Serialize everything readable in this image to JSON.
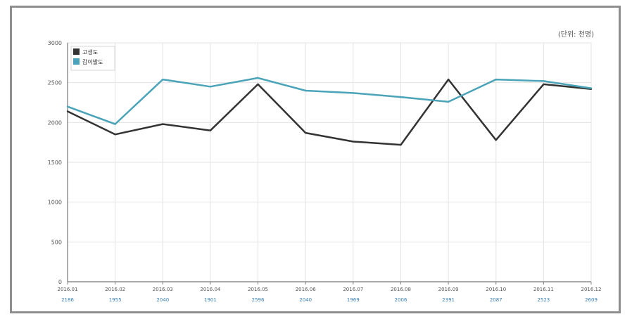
{
  "chart_data": {
    "type": "line",
    "unit_label": "(단위: 천명)",
    "categories": [
      "2016.01",
      "2016.02",
      "2016.03",
      "2016.04",
      "2016.05",
      "2016.06",
      "2016.07",
      "2016.08",
      "2016.09",
      "2016.10",
      "2016.11",
      "2016.12"
    ],
    "subcategories": [
      "2186",
      "1955",
      "2040",
      "1901",
      "2596",
      "2040",
      "1969",
      "2006",
      "2391",
      "2087",
      "2523",
      "2609"
    ],
    "y_ticks": [
      "0",
      "500",
      "1000",
      "1500",
      "2000",
      "2500",
      "3000"
    ],
    "ylim": [
      0,
      3000
    ],
    "legend_position": "top-left",
    "series": [
      {
        "name": "고생도",
        "color": "#333333",
        "values": [
          2140,
          1850,
          1980,
          1900,
          2480,
          1870,
          1760,
          1720,
          2540,
          1780,
          2480,
          2420
        ]
      },
      {
        "name": "갑이발도",
        "color": "#4aa3b8",
        "values": [
          2200,
          1980,
          2540,
          2450,
          2560,
          2400,
          2370,
          2320,
          2260,
          2540,
          2520,
          2430
        ]
      }
    ]
  }
}
